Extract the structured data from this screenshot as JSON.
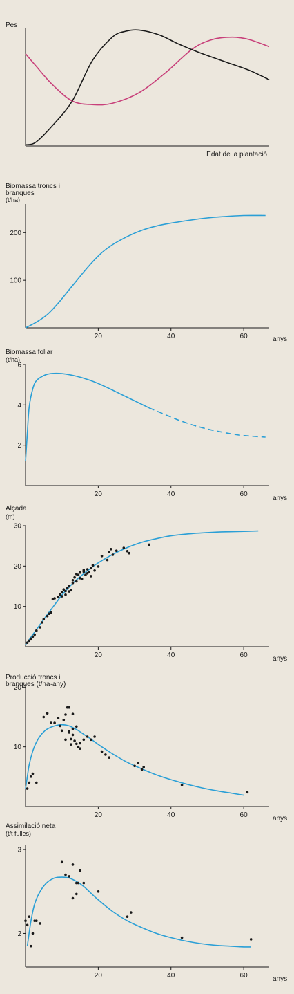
{
  "chart_data": [
    {
      "type": "line",
      "title": "Pes",
      "xlabel": "Edat de la plantació",
      "series": [
        {
          "color": "#c8407a",
          "x": [
            0,
            3,
            8,
            14,
            20,
            26,
            34,
            42,
            50,
            56,
            62,
            67,
            73
          ],
          "y": [
            0.78,
            0.68,
            0.52,
            0.38,
            0.35,
            0.36,
            0.45,
            0.62,
            0.82,
            0.9,
            0.92,
            0.9,
            0.84
          ]
        },
        {
          "color": "#1a1a1a",
          "x": [
            0,
            3,
            8,
            14,
            20,
            26,
            30,
            34,
            40,
            46,
            52,
            60,
            67,
            73
          ],
          "y": [
            0.01,
            0.03,
            0.17,
            0.38,
            0.72,
            0.92,
            0.97,
            0.98,
            0.94,
            0.86,
            0.79,
            0.71,
            0.64,
            0.56
          ]
        }
      ]
    },
    {
      "type": "line",
      "title": "Biomassa troncs i branques",
      "ylabel": "(t/ha)",
      "xlabel": "anys",
      "ylim": [
        0,
        260
      ],
      "xlim": [
        0,
        67
      ],
      "yticks": [
        100,
        200
      ],
      "xticks": [
        20,
        40,
        60
      ],
      "series": [
        {
          "color": "#2a9fd6",
          "x": [
            0,
            3,
            6,
            9,
            12,
            15,
            18,
            21,
            24,
            28,
            32,
            36,
            40,
            45,
            50,
            55,
            60,
            66
          ],
          "y": [
            0,
            12,
            28,
            52,
            80,
            108,
            135,
            158,
            175,
            192,
            205,
            214,
            220,
            226,
            231,
            234,
            236,
            236
          ]
        }
      ]
    },
    {
      "type": "line",
      "title": "Biomassa foliar",
      "ylabel": "(t/ha)",
      "xlabel": "anys",
      "ylim": [
        0,
        6
      ],
      "xlim": [
        0,
        67
      ],
      "yticks": [
        2,
        4,
        6
      ],
      "xticks": [
        20,
        40,
        60
      ],
      "series": [
        {
          "color": "#2a9fd6",
          "x": [
            0,
            0.5,
            1,
            2,
            3,
            5,
            7,
            10,
            14,
            18,
            22,
            26,
            30,
            34
          ],
          "y": [
            1.2,
            2.6,
            3.9,
            4.8,
            5.2,
            5.45,
            5.55,
            5.55,
            5.42,
            5.2,
            4.9,
            4.55,
            4.2,
            3.85
          ]
        },
        {
          "color": "#2a9fd6",
          "dashed": true,
          "x": [
            34,
            38,
            42,
            46,
            50,
            54,
            58,
            62,
            66
          ],
          "y": [
            3.85,
            3.55,
            3.25,
            3.0,
            2.8,
            2.65,
            2.52,
            2.45,
            2.4
          ]
        }
      ]
    },
    {
      "type": "scatter",
      "title": "Alçada",
      "ylabel": "(m)",
      "xlabel": "anys",
      "ylim": [
        0,
        30
      ],
      "xlim": [
        0,
        67
      ],
      "yticks": [
        10,
        20,
        30
      ],
      "xticks": [
        20,
        40,
        60
      ],
      "series": [
        {
          "color": "#2a9fd6",
          "kind": "line",
          "x": [
            0,
            2,
            4,
            6,
            8,
            10,
            12,
            14,
            16,
            18,
            20,
            24,
            28,
            32,
            36,
            40,
            45,
            50,
            55,
            60,
            64
          ],
          "y": [
            0.5,
            3,
            5.5,
            8,
            10.4,
            12.8,
            14.8,
            16.6,
            18.1,
            19.5,
            20.8,
            22.9,
            24.6,
            25.9,
            26.8,
            27.5,
            28.0,
            28.3,
            28.5,
            28.6,
            28.7
          ]
        },
        {
          "color": "#1a1a1a",
          "kind": "points",
          "x": [
            0.5,
            1,
            1.5,
            2,
            2.5,
            3,
            4,
            4.5,
            5,
            6,
            6.5,
            7,
            7.5,
            8,
            9,
            9.5,
            10,
            10,
            10.5,
            11,
            11,
            11.5,
            12,
            12,
            12.5,
            13,
            13,
            13.5,
            14,
            14,
            14.5,
            15,
            15,
            15.5,
            16,
            16,
            16.5,
            17,
            17,
            17.5,
            18,
            18,
            18.5,
            19,
            20,
            21,
            23,
            23.5,
            24,
            27,
            28,
            28.5,
            34,
            22.5,
            25
          ],
          "y": [
            1,
            1.5,
            2,
            2.5,
            3,
            4,
            4.8,
            6,
            6.8,
            7.6,
            8.2,
            8.5,
            11.8,
            12,
            12.3,
            13,
            13.5,
            12.5,
            14.2,
            13.8,
            12.9,
            14.5,
            13.7,
            15,
            14,
            16.5,
            15.8,
            17.2,
            16.2,
            18,
            17.8,
            17,
            18.4,
            16.8,
            18.6,
            19,
            17.8,
            18.2,
            19.2,
            18.5,
            19.5,
            17.5,
            20.2,
            18.9,
            19.9,
            22.5,
            23.5,
            24.2,
            22.8,
            24.5,
            23.7,
            23.2,
            25.3,
            21.5,
            23.8
          ]
        }
      ]
    },
    {
      "type": "scatter",
      "title": "Producció troncs i branques (t/ha·any)",
      "xlabel": "anys",
      "ylim": [
        0,
        20.5
      ],
      "xlim": [
        0,
        67
      ],
      "yticks": [
        10,
        20
      ],
      "xticks": [
        20,
        40,
        60
      ],
      "series": [
        {
          "color": "#2a9fd6",
          "kind": "line",
          "x": [
            0,
            0.5,
            1,
            2,
            3,
            4,
            5,
            6,
            8,
            10,
            12,
            14,
            16,
            18,
            20,
            24,
            28,
            32,
            36,
            40,
            44,
            48,
            52,
            56,
            60
          ],
          "y": [
            3,
            5,
            7,
            9.3,
            10.8,
            11.8,
            12.5,
            13,
            13.5,
            13.7,
            13.5,
            12.9,
            12.1,
            11.3,
            10.4,
            8.8,
            7.4,
            6.3,
            5.3,
            4.5,
            3.8,
            3.2,
            2.7,
            2.3,
            1.9
          ]
        },
        {
          "color": "#1a1a1a",
          "kind": "points",
          "x": [
            0.5,
            1,
            1.5,
            2,
            3,
            5,
            6,
            7,
            8,
            9,
            9.5,
            10,
            10.5,
            11,
            11.5,
            12,
            12,
            12.5,
            13,
            13,
            13.5,
            14,
            14.5,
            15,
            12,
            13,
            11,
            12.5,
            14,
            15,
            16,
            17,
            18,
            19,
            21,
            22,
            23,
            30,
            31,
            32,
            32.5,
            43,
            61
          ],
          "y": [
            3,
            4,
            5,
            5.5,
            4,
            15,
            15.6,
            14,
            14,
            14.8,
            13.5,
            12.7,
            14.5,
            15.4,
            16.6,
            16.6,
            12.4,
            11.3,
            15.5,
            12,
            11,
            13.4,
            10,
            9.7,
            12.6,
            13,
            11.2,
            10.4,
            10.5,
            10.6,
            11.2,
            11.7,
            11.2,
            11.7,
            9.2,
            8.7,
            8.2,
            6.8,
            7.3,
            6.2,
            6.6,
            3.6,
            2.4
          ]
        }
      ]
    },
    {
      "type": "scatter",
      "title": "Assimilació neta",
      "ylabel": "(t/t fulles)",
      "xlabel": "anys",
      "ylim": [
        1.6,
        3.05
      ],
      "xlim": [
        0,
        67
      ],
      "yticks": [
        2,
        3
      ],
      "xticks": [
        20,
        40,
        60
      ],
      "series": [
        {
          "color": "#2a9fd6",
          "kind": "line",
          "x": [
            0.5,
            1.5,
            2.5,
            4,
            6,
            8,
            10,
            12,
            14,
            16,
            18,
            20,
            24,
            28,
            32,
            36,
            40,
            44,
            48,
            52,
            56,
            60,
            62
          ],
          "y": [
            1.85,
            2.15,
            2.35,
            2.5,
            2.61,
            2.66,
            2.67,
            2.66,
            2.62,
            2.56,
            2.48,
            2.4,
            2.26,
            2.15,
            2.07,
            2.0,
            1.95,
            1.91,
            1.88,
            1.86,
            1.85,
            1.84,
            1.84
          ]
        },
        {
          "color": "#1a1a1a",
          "kind": "points",
          "x": [
            0,
            0.5,
            1,
            1.5,
            2,
            2.5,
            3,
            4,
            10,
            11,
            12,
            13,
            14,
            14.5,
            15,
            13,
            14,
            16,
            20,
            28,
            29,
            43,
            62
          ],
          "y": [
            2.15,
            2.1,
            2.2,
            1.85,
            2.0,
            2.15,
            2.15,
            2.12,
            2.85,
            2.7,
            2.68,
            2.42,
            2.47,
            2.6,
            2.75,
            2.82,
            2.6,
            2.6,
            2.5,
            2.2,
            2.25,
            1.95,
            1.93
          ]
        }
      ]
    }
  ]
}
